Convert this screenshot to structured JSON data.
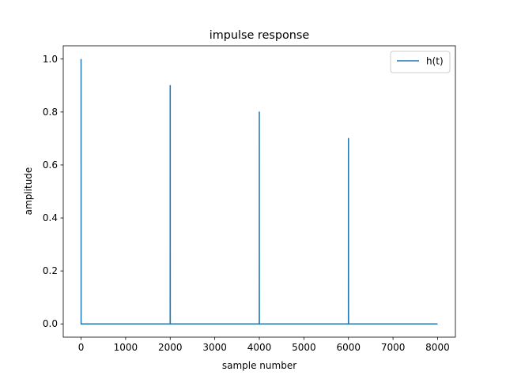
{
  "chart_data": {
    "type": "line",
    "title": "impulse response",
    "xlabel": "sample number",
    "ylabel": "amplitude",
    "xlim": [
      -400,
      8400
    ],
    "ylim": [
      -0.05,
      1.05
    ],
    "xticks": [
      0,
      1000,
      2000,
      3000,
      4000,
      5000,
      6000,
      7000,
      8000
    ],
    "yticks": [
      0.0,
      0.2,
      0.4,
      0.6,
      0.8,
      1.0
    ],
    "xtick_labels": [
      "0",
      "1000",
      "2000",
      "3000",
      "4000",
      "5000",
      "6000",
      "7000",
      "8000"
    ],
    "ytick_labels": [
      "0.0",
      "0.2",
      "0.4",
      "0.6",
      "0.8",
      "1.0"
    ],
    "grid": false,
    "legend": {
      "location": "top-right",
      "entries": [
        "h(t)"
      ]
    },
    "colors": {
      "series": "#1f77b4"
    },
    "series": [
      {
        "name": "h(t)",
        "x": [
          0,
          0,
          1,
          1999,
          2000,
          2001,
          2002,
          3999,
          4000,
          4001,
          5999,
          6000,
          6001,
          6002,
          8000
        ],
        "y": [
          1.0,
          1.0,
          0.0,
          0.0,
          0.9,
          0.9,
          0.0,
          0.0,
          0.8,
          0.0,
          0.0,
          0.7,
          0.7,
          0.0,
          0.0
        ]
      }
    ]
  }
}
